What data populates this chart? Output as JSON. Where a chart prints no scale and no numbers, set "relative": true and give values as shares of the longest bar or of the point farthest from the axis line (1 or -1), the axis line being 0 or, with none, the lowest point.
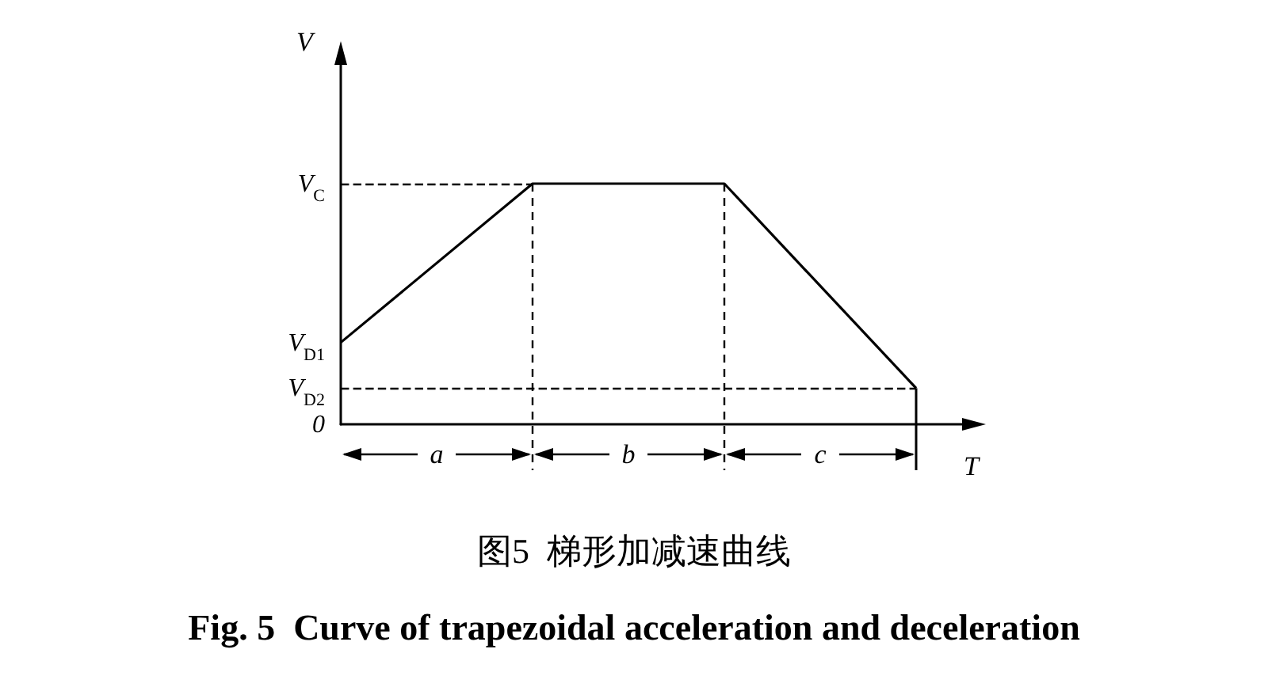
{
  "chart_data": {
    "type": "line",
    "title": "图5  梯形加减速曲线",
    "subtitle": "Fig. 5  Curve of trapezoidal acceleration and deceleration",
    "xlabel": "T",
    "ylabel": "V",
    "categories": [
      null,
      null,
      null,
      null
    ],
    "relative": true,
    "series": [
      {
        "color": "#000000",
        "values": [
          0.34,
          1,
          1,
          0.15
        ]
      }
    ],
    "grid": false,
    "marker": "none",
    "line_style": "solid",
    "ref_lines": [
      {
        "axis": "y",
        "value": 1,
        "line_style": "dashed",
        "label": "V$_{C}$"
      },
      {
        "axis": "y",
        "value": 0.15,
        "line_style": "dashed",
        "label": "V$_{D2}$"
      }
    ],
    "annotations": [
      "0",
      "V$_{D1}$",
      "a",
      "b",
      "c"
    ]
  }
}
